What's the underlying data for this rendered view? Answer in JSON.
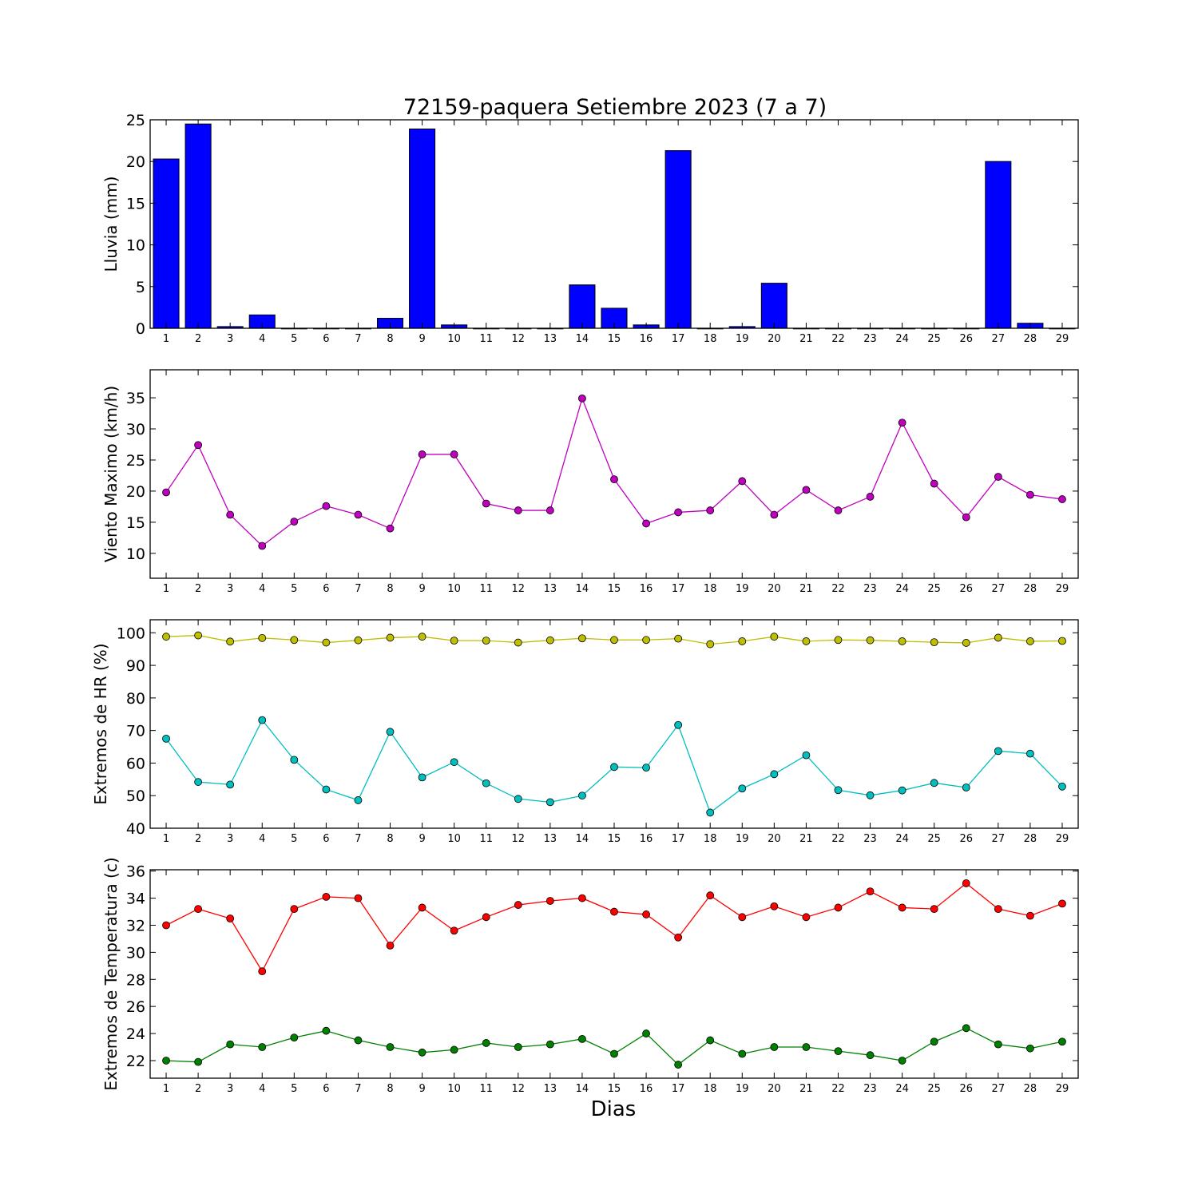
{
  "figure": {
    "title": "72159-paquera Setiembre 2023  (7 a 7)",
    "xlabel": "Dias"
  },
  "chart_data": [
    {
      "type": "bar",
      "ylabel": "Lluvia (mm)",
      "ylim": [
        0,
        25
      ],
      "yticks": [
        0,
        5,
        10,
        15,
        20,
        25
      ],
      "categories": [
        1,
        2,
        3,
        4,
        5,
        6,
        7,
        8,
        9,
        10,
        11,
        12,
        13,
        14,
        15,
        16,
        17,
        18,
        19,
        20,
        21,
        22,
        23,
        24,
        25,
        26,
        27,
        28,
        29
      ],
      "series": [
        {
          "color": "#0000ff",
          "values": [
            20.3,
            24.5,
            0.2,
            1.6,
            0,
            0,
            0,
            1.2,
            23.9,
            0.4,
            0,
            0,
            0,
            5.2,
            2.4,
            0.4,
            21.3,
            0,
            0.2,
            5.4,
            0,
            0,
            0,
            0,
            0,
            0,
            20.0,
            0.6,
            0
          ]
        }
      ],
      "grid": false
    },
    {
      "type": "line",
      "ylabel": "Viento Maximo (km/h)",
      "ylim": [
        6,
        39.5
      ],
      "yticks": [
        10,
        15,
        20,
        25,
        30,
        35
      ],
      "x": [
        1,
        2,
        3,
        4,
        5,
        6,
        7,
        8,
        9,
        10,
        11,
        12,
        13,
        14,
        15,
        16,
        17,
        18,
        19,
        20,
        21,
        22,
        23,
        24,
        25,
        26,
        27,
        28,
        29
      ],
      "series": [
        {
          "color": "#bf00bf",
          "values": [
            19.8,
            27.4,
            16.2,
            11.2,
            15.1,
            17.6,
            16.2,
            14.0,
            25.9,
            25.9,
            18.0,
            16.9,
            16.9,
            34.9,
            21.9,
            14.8,
            16.6,
            16.9,
            21.6,
            16.2,
            20.2,
            16.9,
            19.1,
            31.0,
            21.2,
            15.8,
            22.3,
            19.4,
            18.7
          ]
        }
      ],
      "grid": false
    },
    {
      "type": "line",
      "ylabel": "Extremos de HR (%)",
      "ylim": [
        40,
        104
      ],
      "yticks": [
        40,
        50,
        60,
        70,
        80,
        90,
        100
      ],
      "x": [
        1,
        2,
        3,
        4,
        5,
        6,
        7,
        8,
        9,
        10,
        11,
        12,
        13,
        14,
        15,
        16,
        17,
        18,
        19,
        20,
        21,
        22,
        23,
        24,
        25,
        26,
        27,
        28,
        29
      ],
      "series": [
        {
          "color": "#bfbf00",
          "values": [
            98.8,
            99.2,
            97.3,
            98.4,
            97.8,
            97.0,
            97.7,
            98.5,
            98.8,
            97.6,
            97.6,
            97.0,
            97.7,
            98.3,
            97.8,
            97.8,
            98.2,
            96.5,
            97.4,
            98.8,
            97.4,
            97.8,
            97.7,
            97.4,
            97.1,
            96.9,
            98.5,
            97.4,
            97.5
          ]
        },
        {
          "color": "#00bfbf",
          "values": [
            67.5,
            54.2,
            53.4,
            73.2,
            61.0,
            51.9,
            48.6,
            69.6,
            55.6,
            60.3,
            53.8,
            49.0,
            48.0,
            50.0,
            58.8,
            58.6,
            71.7,
            44.8,
            52.2,
            56.6,
            62.4,
            51.7,
            50.1,
            51.6,
            53.9,
            52.5,
            63.7,
            62.9,
            52.8
          ]
        }
      ],
      "grid": false
    },
    {
      "type": "line",
      "ylabel": "Extremos de Temperatura (c)",
      "ylim": [
        20.7,
        36.1
      ],
      "yticks": [
        22,
        24,
        26,
        28,
        30,
        32,
        34,
        36
      ],
      "x": [
        1,
        2,
        3,
        4,
        5,
        6,
        7,
        8,
        9,
        10,
        11,
        12,
        13,
        14,
        15,
        16,
        17,
        18,
        19,
        20,
        21,
        22,
        23,
        24,
        25,
        26,
        27,
        28,
        29
      ],
      "series": [
        {
          "color": "#ff0000",
          "values": [
            32.0,
            33.2,
            32.5,
            28.6,
            33.2,
            34.1,
            34.0,
            30.5,
            33.3,
            31.6,
            32.6,
            33.5,
            33.8,
            34.0,
            33.0,
            32.8,
            31.1,
            34.2,
            32.6,
            33.4,
            32.6,
            33.3,
            34.5,
            33.3,
            33.2,
            35.1,
            33.2,
            32.7,
            33.6
          ]
        },
        {
          "color": "#008000",
          "values": [
            22.0,
            21.9,
            23.2,
            23.0,
            23.7,
            24.2,
            23.5,
            23.0,
            22.6,
            22.8,
            23.3,
            23.0,
            23.2,
            23.6,
            22.5,
            24.0,
            21.7,
            23.5,
            22.5,
            23.0,
            23.0,
            22.7,
            22.4,
            22.0,
            23.4,
            24.4,
            23.2,
            22.9,
            23.4
          ]
        }
      ],
      "grid": false
    }
  ]
}
